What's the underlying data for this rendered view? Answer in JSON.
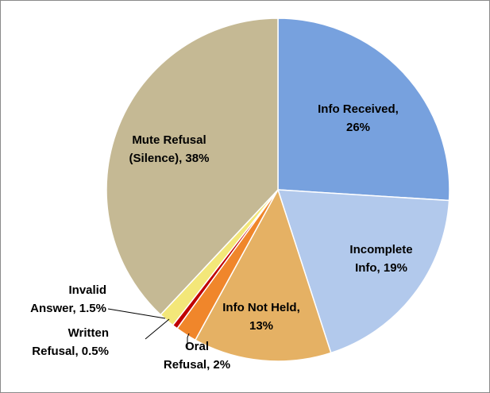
{
  "chart_data": {
    "type": "pie",
    "title": "",
    "slices": [
      {
        "name": "Info Received",
        "value": 26,
        "color": "#77a1de",
        "label_lines": [
          "Info Received,",
          "26%"
        ]
      },
      {
        "name": "Incomplete Info",
        "value": 19,
        "color": "#b2c9ec",
        "label_lines": [
          "Incomplete",
          "Info, 19%"
        ]
      },
      {
        "name": "Info Not Held",
        "value": 13,
        "color": "#e5b164",
        "label_lines": [
          "Info Not Held,",
          "13%"
        ]
      },
      {
        "name": "Oral Refusal",
        "value": 2,
        "color": "#f0862b",
        "label_lines": [
          "Oral",
          "Refusal, 2%"
        ]
      },
      {
        "name": "Written Refusal",
        "value": 0.5,
        "color": "#c00000",
        "label_lines": [
          "Written",
          "Refusal, 0.5%"
        ]
      },
      {
        "name": "Invalid Answer",
        "value": 1.5,
        "color": "#f3e779",
        "label_lines": [
          "Invalid",
          "Answer, 1.5%"
        ]
      },
      {
        "name": "Mute Refusal (Silence)",
        "value": 38,
        "color": "#c5b994",
        "label_lines": [
          "Mute Refusal",
          "(Silence), 38%"
        ]
      }
    ],
    "start_angle_deg": 0,
    "direction": "clockwise",
    "legend": "none"
  }
}
